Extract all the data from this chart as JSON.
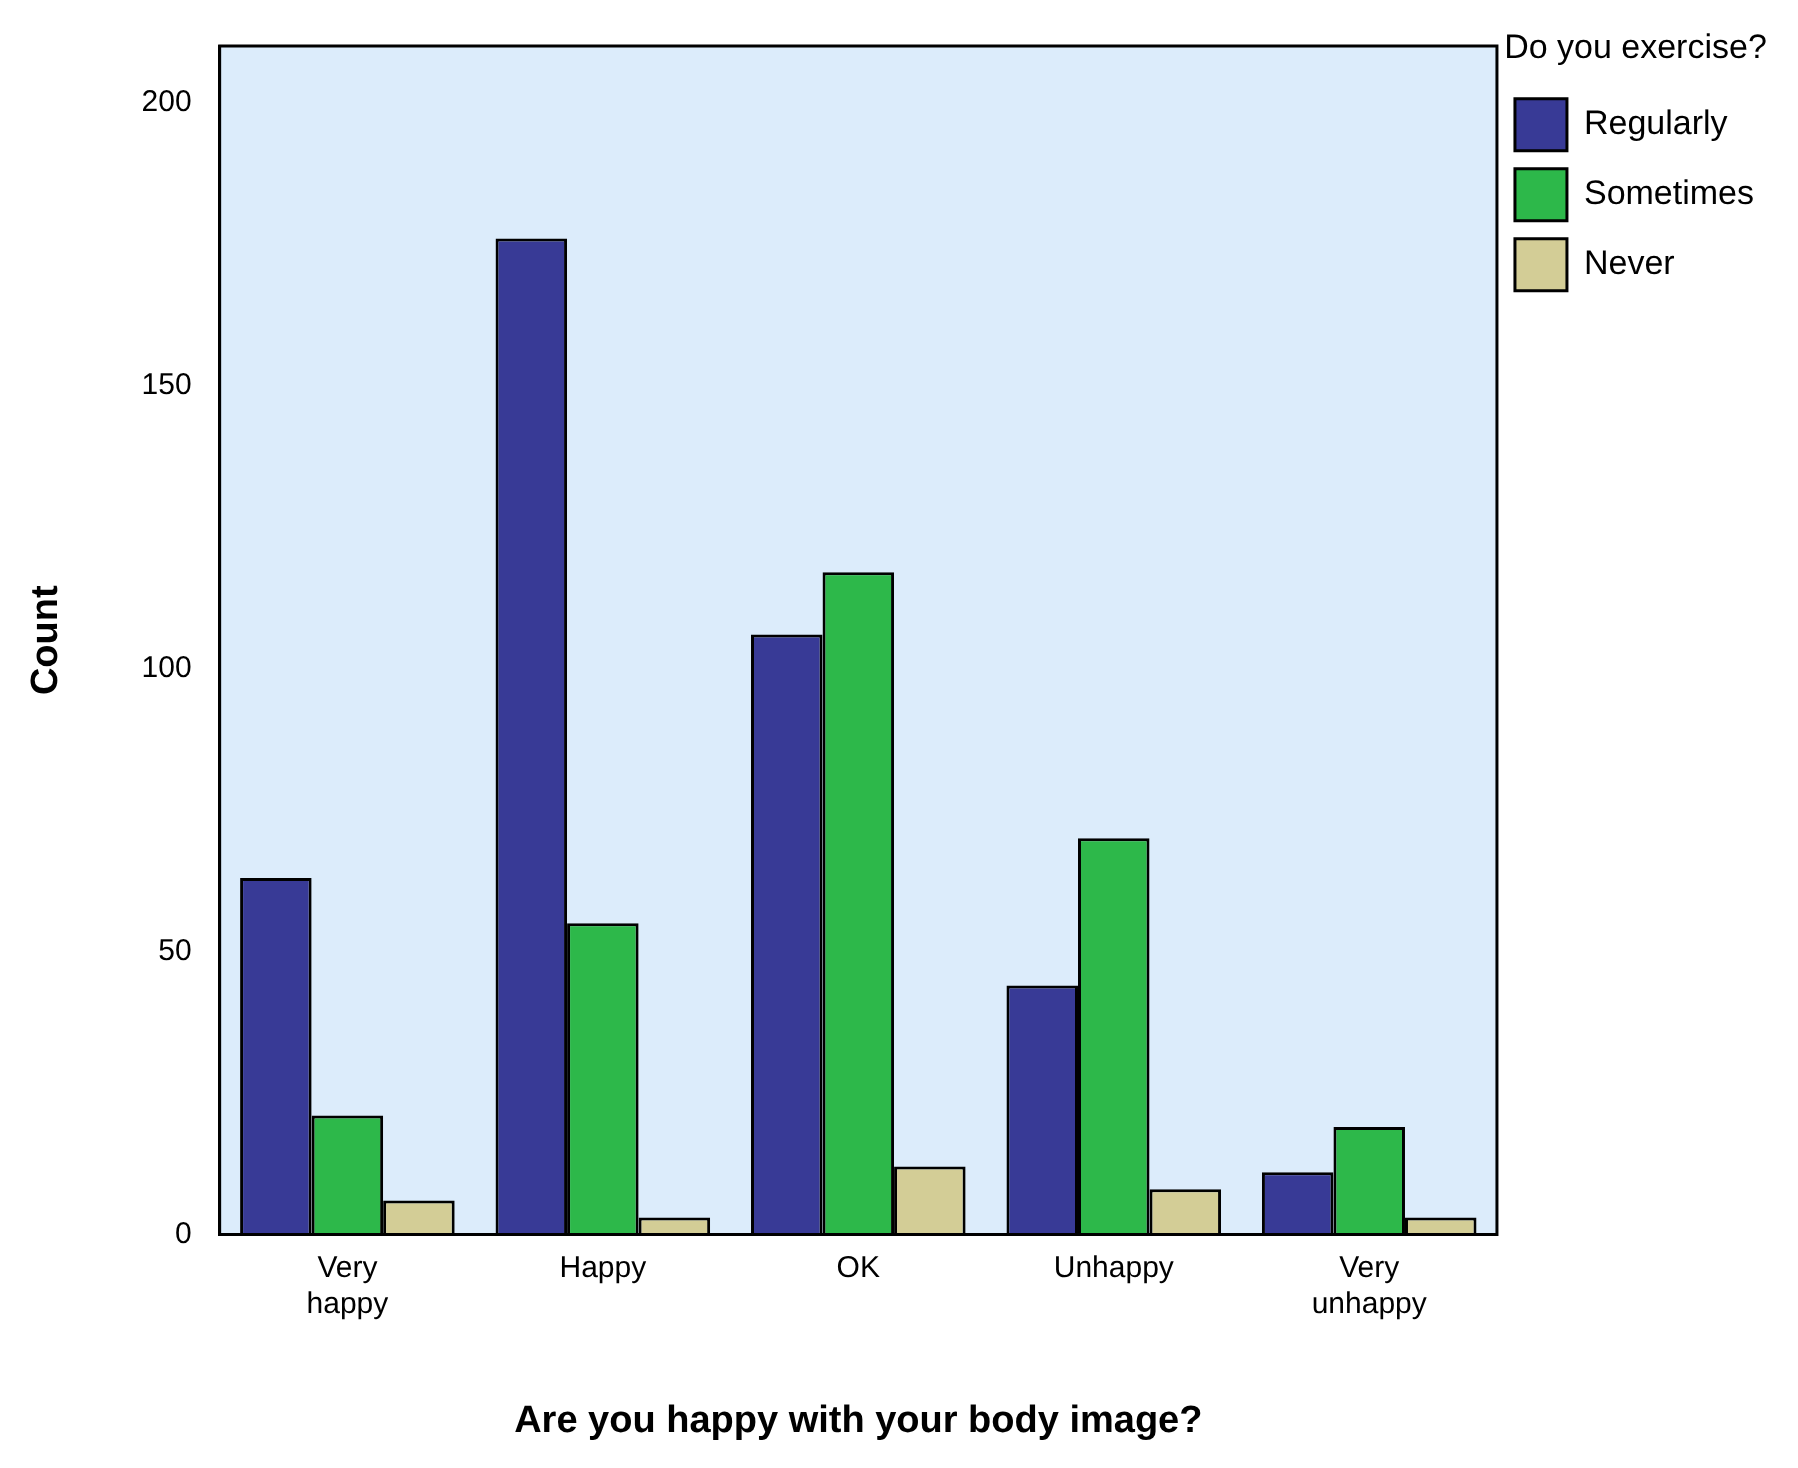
{
  "chart_data": {
    "type": "bar",
    "xlabel": "Are you happy with your body image?",
    "ylabel": "Count",
    "legend_title": "Do you exercise?",
    "categories": [
      "Very happy",
      "Happy",
      "OK",
      "Unhappy",
      "Very unhappy"
    ],
    "series": [
      {
        "name": "Regularly",
        "color": "#383a96",
        "values": [
          63,
          176,
          106,
          44,
          11
        ]
      },
      {
        "name": "Sometimes",
        "color": "#2db84a",
        "values": [
          21,
          55,
          117,
          70,
          19
        ]
      },
      {
        "name": "Never",
        "color": "#d3cd96",
        "values": [
          6,
          3,
          12,
          8,
          3
        ]
      }
    ],
    "ylim": [
      0,
      210
    ],
    "yticks": [
      0,
      50,
      100,
      150,
      200
    ],
    "grid": false,
    "legend": "top right"
  }
}
